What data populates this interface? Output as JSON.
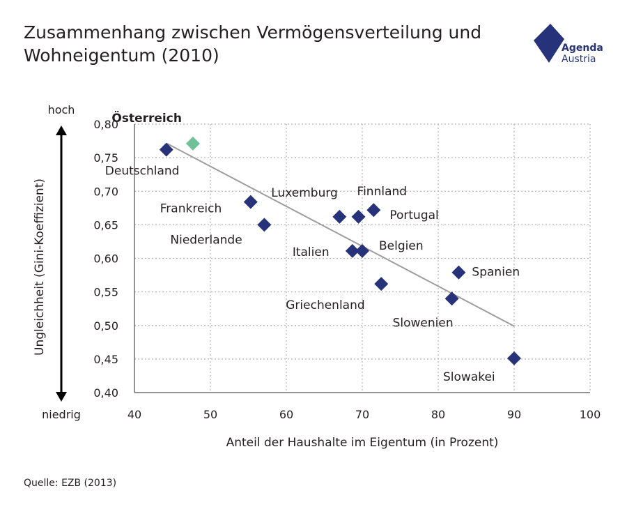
{
  "header": {
    "title_line1": "Zusammenhang zwischen Vermögensverteilung und",
    "title_line2": "Wohneigentum (2010)"
  },
  "brand": {
    "name_line1": "Agenda",
    "name_line2": "Austria",
    "color": "#26337b",
    "icon": "agenda-austria-logo-icon"
  },
  "footer": {
    "source": "Quelle: EZB (2013)"
  },
  "chart_data": {
    "type": "scatter",
    "xlabel": "Anteil der Haushalte im Eigentum (in Prozent)",
    "ylabel": "Ungleichheit (Gini-Koeffizient)",
    "y_top_note": "hoch",
    "y_bottom_note": "niedrig",
    "xlim": [
      40,
      100
    ],
    "ylim": [
      0.4,
      0.8
    ],
    "xticks": [
      40,
      50,
      60,
      70,
      80,
      90,
      100
    ],
    "xtick_labels": [
      "40",
      "50",
      "60",
      "70",
      "80",
      "90",
      "100"
    ],
    "yticks": [
      0.4,
      0.45,
      0.5,
      0.55,
      0.6,
      0.65,
      0.7,
      0.75,
      0.8
    ],
    "ytick_labels": [
      "0,40",
      "0,45",
      "0,50",
      "0,55",
      "0,60",
      "0,65",
      "0,70",
      "0,75",
      "0,80"
    ],
    "grid": "dotted",
    "marker_color": "#26337b",
    "highlight_color": "#6fc19a",
    "trendline_color": "#9d9d9d",
    "trendline": {
      "x": [
        44.3,
        90.0
      ],
      "y": [
        0.771,
        0.499
      ]
    },
    "points": [
      {
        "label": "Österreich",
        "x": 47.7,
        "y": 0.771,
        "highlight": true,
        "bold": true
      },
      {
        "label": "Deutschland",
        "x": 44.2,
        "y": 0.762,
        "highlight": false
      },
      {
        "label": "Frankreich",
        "x": 55.3,
        "y": 0.684,
        "highlight": false
      },
      {
        "label": "Niederlande",
        "x": 57.1,
        "y": 0.65,
        "highlight": false
      },
      {
        "label": "Luxemburg",
        "x": 67.0,
        "y": 0.662,
        "highlight": false
      },
      {
        "label": "Finnland",
        "x": 69.5,
        "y": 0.662,
        "highlight": false
      },
      {
        "label": "Portugal",
        "x": 71.5,
        "y": 0.672,
        "highlight": false
      },
      {
        "label": "Italien",
        "x": 68.7,
        "y": 0.611,
        "highlight": false
      },
      {
        "label": "Belgien",
        "x": 70.0,
        "y": 0.611,
        "highlight": false
      },
      {
        "label": "Griechenland",
        "x": 72.5,
        "y": 0.562,
        "highlight": false
      },
      {
        "label": "Spanien",
        "x": 82.7,
        "y": 0.579,
        "highlight": false
      },
      {
        "label": "Slowenien",
        "x": 81.8,
        "y": 0.54,
        "highlight": false
      },
      {
        "label": "Slowakei",
        "x": 90.0,
        "y": 0.451,
        "highlight": false
      }
    ]
  }
}
